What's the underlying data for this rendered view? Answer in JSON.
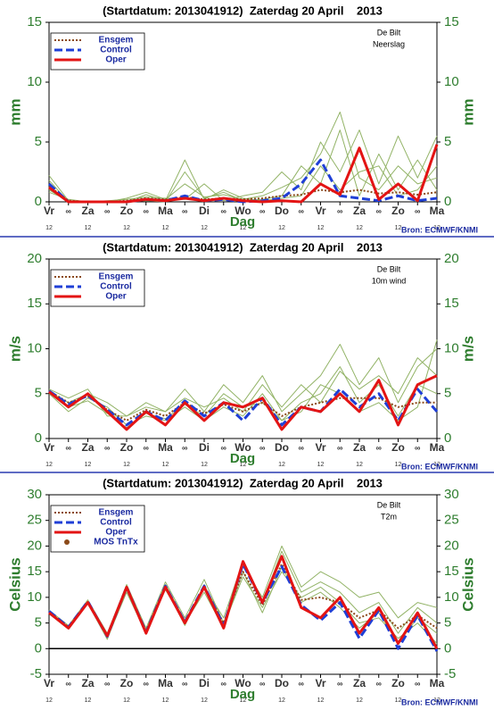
{
  "chart_data": [
    {
      "type": "line",
      "title": "(Startdatum: 2013041912)  Zaterdag 20 April    2013",
      "ylabel": "mm",
      "xlabel": "Dag",
      "source": "Bron: ECMWF/KNMI",
      "annotations": [
        "De Bilt",
        "Neerslag"
      ],
      "x": [
        0,
        1,
        2,
        3,
        4,
        5,
        6,
        7,
        8,
        9,
        10,
        11,
        12,
        13,
        14,
        15,
        16,
        17,
        18,
        19,
        20
      ],
      "xlim": [
        0,
        20
      ],
      "xticks": [
        {
          "value": 0,
          "label": "Vr"
        },
        {
          "value": 1,
          "label": "∞"
        },
        {
          "value": 2,
          "label": "Za"
        },
        {
          "value": 3,
          "label": "∞"
        },
        {
          "value": 4,
          "label": "Zo"
        },
        {
          "value": 5,
          "label": "∞"
        },
        {
          "value": 6,
          "label": "Ma"
        },
        {
          "value": 7,
          "label": "∞"
        },
        {
          "value": 8,
          "label": "Di"
        },
        {
          "value": 9,
          "label": "∞"
        },
        {
          "value": 10,
          "label": "Wo"
        },
        {
          "value": 11,
          "label": "∞"
        },
        {
          "value": 12,
          "label": "Do"
        },
        {
          "value": 13,
          "label": "∞"
        },
        {
          "value": 14,
          "label": "Vr"
        },
        {
          "value": 15,
          "label": "∞"
        },
        {
          "value": 16,
          "label": "Za"
        },
        {
          "value": 17,
          "label": "∞"
        },
        {
          "value": 18,
          "label": "Zo"
        },
        {
          "value": 19,
          "label": "∞"
        },
        {
          "value": 20,
          "label": "Ma"
        }
      ],
      "xticks2": [
        {
          "value": 0,
          "label": "12"
        },
        {
          "value": 2,
          "label": "12"
        },
        {
          "value": 4,
          "label": "12"
        },
        {
          "value": 6,
          "label": "12"
        },
        {
          "value": 8,
          "label": "12"
        },
        {
          "value": 10,
          "label": "12"
        },
        {
          "value": 12,
          "label": "12"
        },
        {
          "value": 14,
          "label": "12"
        },
        {
          "value": 16,
          "label": "12"
        },
        {
          "value": 18,
          "label": "12"
        },
        {
          "value": 20,
          "label": "12"
        }
      ],
      "ylim": [
        0,
        15
      ],
      "yticks": [
        0,
        5,
        10,
        15
      ],
      "members": {
        "color": "#92b366",
        "values": [
          [
            2.2,
            0.1,
            0,
            0,
            0.3,
            0.8,
            0.2,
            1.5,
            0.4,
            0.6,
            0.2,
            0.5,
            1.2,
            2,
            4,
            7.5,
            2,
            1,
            3,
            1.5,
            2
          ],
          [
            1,
            0,
            0,
            0,
            0,
            0.1,
            0,
            2.5,
            0.3,
            0.8,
            0.1,
            0.2,
            0.5,
            3,
            1.5,
            6,
            0.5,
            4,
            1,
            3.5,
            1
          ],
          [
            1.8,
            0,
            0,
            0.1,
            0.2,
            0.4,
            0.3,
            0.2,
            1.5,
            0.1,
            0.5,
            0.8,
            2.5,
            1,
            5,
            2.5,
            6,
            1.5,
            5.5,
            2,
            5.5
          ],
          [
            0.8,
            0.2,
            0,
            0,
            0,
            0.6,
            0.1,
            3.5,
            0.2,
            1,
            0.3,
            0.1,
            0.3,
            0.5,
            3,
            1,
            2.5,
            3,
            0.5,
            1,
            3
          ]
        ]
      },
      "series": [
        {
          "name": "Ensgem",
          "color": "#8b4a1a",
          "style": "dotted",
          "values": [
            1.3,
            0.1,
            0,
            0,
            0.1,
            0.3,
            0.2,
            0.4,
            0.2,
            0.3,
            0.2,
            0.3,
            0.5,
            0.6,
            1,
            0.8,
            1,
            0.7,
            0.8,
            0.6,
            0.8
          ]
        },
        {
          "name": "Control",
          "color": "#1f3fd6",
          "style": "dashed",
          "values": [
            1.5,
            0,
            0,
            0,
            0,
            0.2,
            0.1,
            0.5,
            0.1,
            0.2,
            0,
            0.1,
            0.3,
            1.5,
            3.5,
            0.5,
            0.3,
            0.1,
            0.5,
            0.1,
            0.3
          ]
        },
        {
          "name": "Oper",
          "color": "#e31414",
          "style": "solid",
          "values": [
            1.2,
            0,
            0,
            0,
            0,
            0.2,
            0.1,
            0.3,
            0.1,
            0.3,
            0.1,
            0,
            0.1,
            0,
            1.5,
            0.6,
            4.5,
            0.2,
            1.5,
            0.1,
            4.8
          ]
        }
      ]
    },
    {
      "type": "line",
      "title": "(Startdatum: 2013041912)  Zaterdag 20 April    2013",
      "ylabel": "m/s",
      "xlabel": "Dag",
      "source": "Bron: ECMWF/KNMI",
      "annotations": [
        "De Bilt",
        "10m wind"
      ],
      "x": [
        0,
        1,
        2,
        3,
        4,
        5,
        6,
        7,
        8,
        9,
        10,
        11,
        12,
        13,
        14,
        15,
        16,
        17,
        18,
        19,
        20
      ],
      "xlim": [
        0,
        20
      ],
      "xticks": [
        {
          "value": 0,
          "label": "Vr"
        },
        {
          "value": 1,
          "label": "∞"
        },
        {
          "value": 2,
          "label": "Za"
        },
        {
          "value": 3,
          "label": "∞"
        },
        {
          "value": 4,
          "label": "Zo"
        },
        {
          "value": 5,
          "label": "∞"
        },
        {
          "value": 6,
          "label": "Ma"
        },
        {
          "value": 7,
          "label": "∞"
        },
        {
          "value": 8,
          "label": "Di"
        },
        {
          "value": 9,
          "label": "∞"
        },
        {
          "value": 10,
          "label": "Wo"
        },
        {
          "value": 11,
          "label": "∞"
        },
        {
          "value": 12,
          "label": "Do"
        },
        {
          "value": 13,
          "label": "∞"
        },
        {
          "value": 14,
          "label": "Vr"
        },
        {
          "value": 15,
          "label": "∞"
        },
        {
          "value": 16,
          "label": "Za"
        },
        {
          "value": 17,
          "label": "∞"
        },
        {
          "value": 18,
          "label": "Zo"
        },
        {
          "value": 19,
          "label": "∞"
        },
        {
          "value": 20,
          "label": "Ma"
        }
      ],
      "xticks2": [
        {
          "value": 0,
          "label": "12"
        },
        {
          "value": 2,
          "label": "12"
        },
        {
          "value": 4,
          "label": "12"
        },
        {
          "value": 6,
          "label": "12"
        },
        {
          "value": 8,
          "label": "12"
        },
        {
          "value": 10,
          "label": "12"
        },
        {
          "value": 12,
          "label": "12"
        },
        {
          "value": 14,
          "label": "12"
        },
        {
          "value": 16,
          "label": "12"
        },
        {
          "value": 18,
          "label": "12"
        },
        {
          "value": 20,
          "label": "12"
        }
      ],
      "ylim": [
        0,
        20
      ],
      "yticks": [
        0,
        5,
        10,
        15,
        20
      ],
      "members": {
        "color": "#92b366",
        "values": [
          [
            5.5,
            4.5,
            5.5,
            2.5,
            2.5,
            4,
            3,
            5.5,
            3,
            6,
            4,
            7,
            3,
            5,
            7,
            10.5,
            6,
            9,
            4,
            8,
            10
          ],
          [
            5,
            3,
            4.5,
            3.5,
            1.5,
            2.5,
            2,
            3.5,
            2,
            3.5,
            2.5,
            5,
            2,
            4,
            5,
            8,
            4,
            6,
            2.5,
            6,
            5
          ],
          [
            5.2,
            4,
            5,
            4,
            2.5,
            3.5,
            3,
            4.5,
            3.5,
            4.5,
            3,
            6,
            3.5,
            6,
            4,
            7.5,
            5.5,
            7,
            5,
            9,
            7
          ],
          [
            5.4,
            3.5,
            4.2,
            2.8,
            1.2,
            2.8,
            2.2,
            3.8,
            2.5,
            5,
            3.5,
            4,
            2,
            3,
            6,
            5,
            3,
            4,
            2,
            3.5,
            11
          ]
        ]
      },
      "series": [
        {
          "name": "Ensgem",
          "color": "#8b4a1a",
          "style": "dotted",
          "values": [
            5.3,
            4,
            4.7,
            3.2,
            2,
            3.2,
            2.5,
            4,
            2.8,
            3.8,
            3,
            4,
            2.5,
            3.5,
            4,
            4.5,
            4.5,
            4.5,
            3.5,
            4,
            4
          ]
        },
        {
          "name": "Control",
          "color": "#1f3fd6",
          "style": "dashed",
          "values": [
            5.3,
            3.8,
            4.8,
            3.2,
            1.5,
            3,
            2,
            4.2,
            2.5,
            4,
            2,
            4.5,
            1.5,
            3.5,
            3,
            5.5,
            3.5,
            5,
            2,
            5.5,
            3
          ]
        },
        {
          "name": "Oper",
          "color": "#e31414",
          "style": "solid",
          "values": [
            5.2,
            3.5,
            5,
            3,
            1,
            3,
            1.5,
            4,
            2,
            4,
            3.5,
            4.5,
            1,
            3.5,
            3,
            5,
            3,
            6.5,
            1.5,
            6,
            7
          ]
        }
      ]
    },
    {
      "type": "line",
      "title": "(Startdatum: 2013041912)  Zaterdag 20 April    2013",
      "ylabel": "Celsius",
      "xlabel": "Dag",
      "source": "Bron: ECMWF/KNMI",
      "annotations": [
        "De Bilt",
        "T2m"
      ],
      "x": [
        0,
        1,
        2,
        3,
        4,
        5,
        6,
        7,
        8,
        9,
        10,
        11,
        12,
        13,
        14,
        15,
        16,
        17,
        18,
        19,
        20
      ],
      "xlim": [
        0,
        20
      ],
      "xticks": [
        {
          "value": 0,
          "label": "Vr"
        },
        {
          "value": 1,
          "label": "∞"
        },
        {
          "value": 2,
          "label": "Za"
        },
        {
          "value": 3,
          "label": "∞"
        },
        {
          "value": 4,
          "label": "Zo"
        },
        {
          "value": 5,
          "label": "∞"
        },
        {
          "value": 6,
          "label": "Ma"
        },
        {
          "value": 7,
          "label": "∞"
        },
        {
          "value": 8,
          "label": "Di"
        },
        {
          "value": 9,
          "label": "∞"
        },
        {
          "value": 10,
          "label": "Wo"
        },
        {
          "value": 11,
          "label": "∞"
        },
        {
          "value": 12,
          "label": "Do"
        },
        {
          "value": 13,
          "label": "∞"
        },
        {
          "value": 14,
          "label": "Vr"
        },
        {
          "value": 15,
          "label": "∞"
        },
        {
          "value": 16,
          "label": "Za"
        },
        {
          "value": 17,
          "label": "∞"
        },
        {
          "value": 18,
          "label": "Zo"
        },
        {
          "value": 19,
          "label": "∞"
        },
        {
          "value": 20,
          "label": "Ma"
        }
      ],
      "xticks2": [
        {
          "value": 0,
          "label": "12"
        },
        {
          "value": 2,
          "label": "12"
        },
        {
          "value": 4,
          "label": "12"
        },
        {
          "value": 6,
          "label": "12"
        },
        {
          "value": 8,
          "label": "12"
        },
        {
          "value": 10,
          "label": "12"
        },
        {
          "value": 12,
          "label": "12"
        },
        {
          "value": 14,
          "label": "12"
        },
        {
          "value": 16,
          "label": "12"
        },
        {
          "value": 18,
          "label": "12"
        },
        {
          "value": 20,
          "label": "12"
        }
      ],
      "ylim": [
        -5,
        30
      ],
      "yticks": [
        -5,
        0,
        5,
        10,
        15,
        20,
        25,
        30
      ],
      "zero_line": true,
      "members": {
        "color": "#92b366",
        "values": [
          [
            7.5,
            4.5,
            9.5,
            3,
            12.5,
            4,
            13,
            6,
            13.5,
            5,
            16,
            10,
            20,
            12,
            15,
            13,
            10,
            11,
            6,
            9,
            8
          ],
          [
            7,
            4,
            9,
            2,
            11,
            3,
            11.5,
            5,
            11,
            4,
            15,
            7,
            16,
            9,
            11,
            8,
            4,
            7,
            1,
            6,
            3
          ],
          [
            7.2,
            4.2,
            9.2,
            2.5,
            12,
            3.5,
            12.5,
            5.5,
            12,
            6,
            17,
            9,
            19,
            11,
            13,
            11,
            7,
            9,
            3,
            8,
            5
          ],
          [
            6.8,
            3.8,
            8.8,
            1.8,
            11.5,
            2.8,
            12,
            4.5,
            12.5,
            4.5,
            14,
            8,
            15,
            10,
            12,
            9,
            5,
            6,
            2,
            5,
            1
          ]
        ]
      },
      "series": [
        {
          "name": "Ensgem",
          "color": "#8b4a1a",
          "style": "dotted",
          "values": [
            7.2,
            4.2,
            9,
            2.6,
            11.8,
            3.4,
            12,
            5,
            12,
            5,
            15,
            8.5,
            16.5,
            9.5,
            10,
            9,
            6,
            7.5,
            4,
            6.5,
            4
          ]
        },
        {
          "name": "Control",
          "color": "#1f3fd6",
          "style": "dashed",
          "values": [
            7.3,
            4.2,
            9.2,
            2.4,
            12,
            3.2,
            12.2,
            5.2,
            12.2,
            4.5,
            16.5,
            9,
            16,
            8.5,
            5.5,
            9,
            2,
            7.5,
            0,
            6.5,
            -0.5
          ]
        },
        {
          "name": "Oper",
          "color": "#e31414",
          "style": "solid",
          "values": [
            7,
            4,
            9,
            2.5,
            12,
            3,
            12,
            5,
            12,
            4,
            17,
            9,
            18,
            8,
            6,
            10,
            3,
            8,
            1,
            7,
            0
          ]
        },
        {
          "name": "MOS TnTx",
          "color": "#8b4a1a",
          "style": "marker",
          "values": [
            null,
            null,
            null,
            null,
            null,
            null,
            null,
            null,
            null,
            null,
            null,
            null,
            null,
            null,
            null,
            null,
            null,
            null,
            null,
            null,
            null
          ]
        }
      ]
    }
  ]
}
